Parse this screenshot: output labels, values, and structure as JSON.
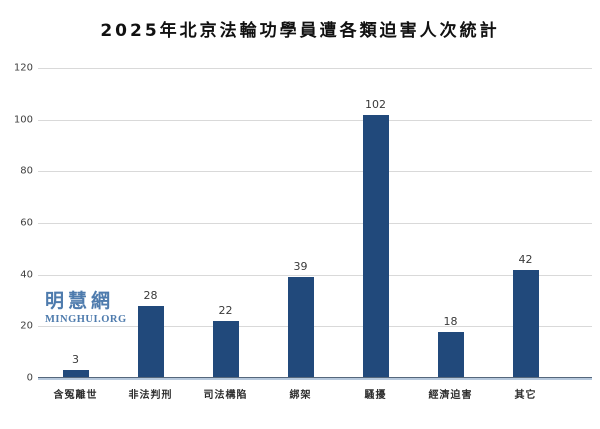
{
  "chart_data": {
    "type": "bar",
    "title": "2025年北京法輪功學員遭各類迫害人次統計",
    "categories": [
      "含冤離世",
      "非法判刑",
      "司法構陷",
      "綁架",
      "騷擾",
      "經濟迫害",
      "其它"
    ],
    "values": [
      3,
      28,
      22,
      39,
      102,
      18,
      42
    ],
    "xlabel": "",
    "ylabel": "",
    "ylim": [
      0,
      120
    ],
    "ytick_step": 20,
    "yticks": [
      0,
      20,
      40,
      60,
      80,
      100,
      120
    ],
    "grid": true,
    "legend": "none",
    "bar_color": "#21497B",
    "gridline_color": "#d9d9d9",
    "tick_label_color": "#3f3f3f",
    "value_label_color": "#3a3a3a"
  },
  "watermark": {
    "cn": "明慧網",
    "en": "MINGHUI.ORG",
    "color": "#4e7bad"
  }
}
